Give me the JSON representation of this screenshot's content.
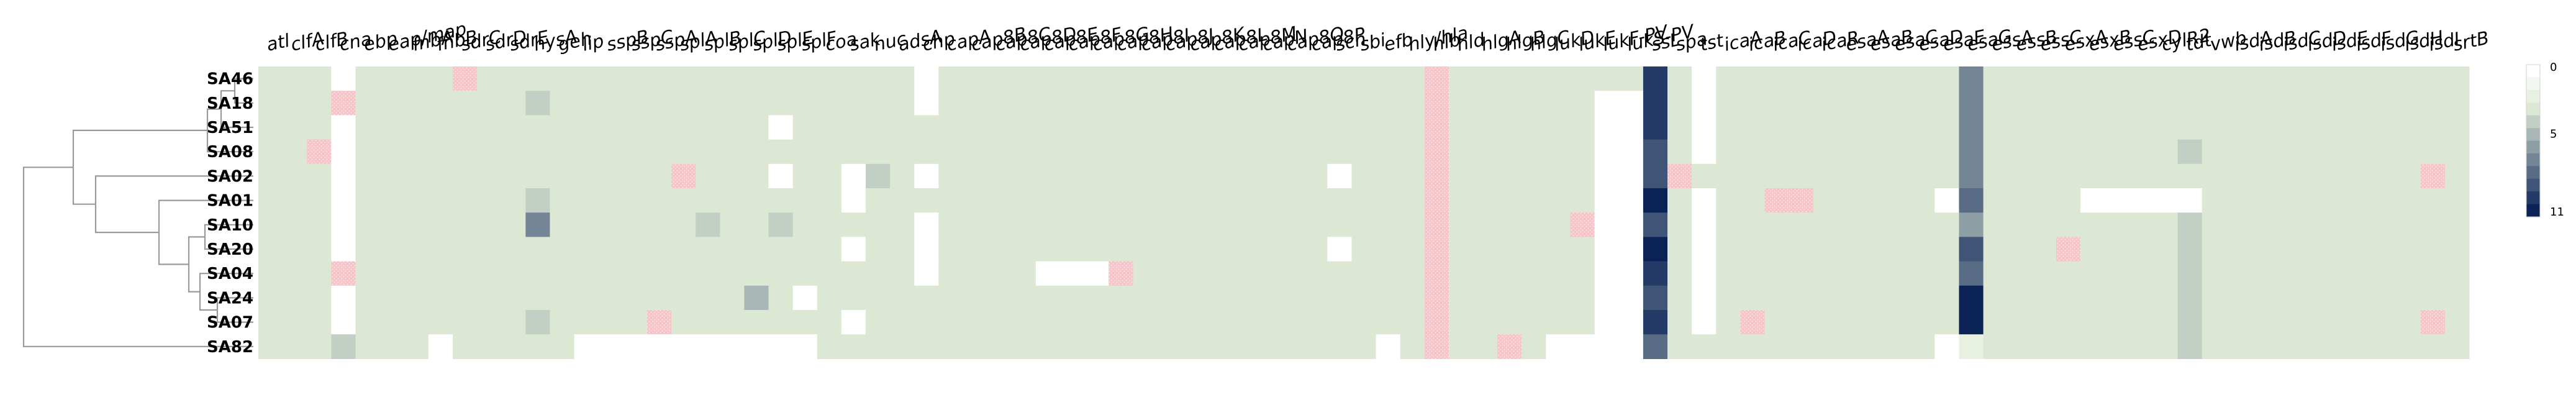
{
  "chart_data": {
    "type": "heatmap",
    "title": "",
    "xlabel": "",
    "ylabel": "",
    "genes": [
      "atl",
      "clfA",
      "clfB",
      "cna",
      "ebp",
      "eap/map",
      "fnbA",
      "fnbB",
      "sdrC",
      "sdrD",
      "sdrE",
      "hysA",
      "geh",
      "lip",
      "sspB",
      "sspC",
      "sspA",
      "splA",
      "splB",
      "splC",
      "splD",
      "splE",
      "splF",
      "coa",
      "sak",
      "nuc",
      "adsA",
      "chp",
      "capA",
      "cap8B",
      "cap8C",
      "cap8D",
      "cap8E",
      "cap8F",
      "cap8G",
      "cap8H",
      "cap8I",
      "cap8J",
      "cap8K",
      "cap8L",
      "cap8M",
      "capN",
      "cap8O",
      "cap8P",
      "scn",
      "sbi",
      "efb",
      "hly/hla",
      "hlb",
      "hld",
      "hlgA",
      "hlgB",
      "hlgC",
      "lukD",
      "lukE",
      "lukF-PV",
      "lukS-PV",
      "ssL",
      "spa",
      "tst",
      "icaA",
      "icaB",
      "icaC",
      "icaD",
      "icaR",
      "esaA",
      "esaB",
      "esaC",
      "esaD",
      "esaE",
      "esaG",
      "essA",
      "essB",
      "essC",
      "esxA",
      "esxB",
      "essC",
      "esxD",
      "cylR2",
      "tdt",
      "vwb",
      "isdA",
      "isdB",
      "isdC",
      "isdD",
      "isdE",
      "isdF",
      "isdG",
      "isdH",
      "isdI",
      "srtB"
    ],
    "samples": [
      "SA46",
      "SA18",
      "SA51",
      "SA08",
      "SA02",
      "SA01",
      "SA10",
      "SA20",
      "SA04",
      "SA24",
      "SA07",
      "SA82"
    ],
    "default_value": 3,
    "absent_value": 0,
    "special_marker": "pink-dots",
    "white_cells": [
      [
        0,
        3
      ],
      [
        0,
        27
      ],
      [
        0,
        59
      ],
      [
        1,
        3
      ],
      [
        1,
        27
      ],
      [
        1,
        59
      ],
      [
        2,
        3
      ],
      [
        2,
        21
      ],
      [
        2,
        59
      ],
      [
        3,
        3
      ],
      [
        3,
        59
      ],
      [
        4,
        3
      ],
      [
        4,
        21
      ],
      [
        4,
        24
      ],
      [
        4,
        27
      ],
      [
        4,
        44
      ],
      [
        5,
        3
      ],
      [
        5,
        24
      ],
      [
        5,
        59
      ],
      [
        5,
        69
      ],
      [
        5,
        70
      ],
      [
        5,
        75
      ],
      [
        5,
        76
      ],
      [
        5,
        77
      ],
      [
        5,
        78
      ],
      [
        5,
        79
      ],
      [
        6,
        3
      ],
      [
        6,
        27
      ],
      [
        6,
        59
      ],
      [
        7,
        3
      ],
      [
        7,
        24
      ],
      [
        7,
        27
      ],
      [
        7,
        44
      ],
      [
        7,
        59
      ],
      [
        8,
        27
      ],
      [
        8,
        32
      ],
      [
        8,
        33
      ],
      [
        8,
        34
      ],
      [
        8,
        59
      ],
      [
        9,
        3
      ],
      [
        9,
        22
      ],
      [
        9,
        59
      ],
      [
        10,
        3
      ],
      [
        10,
        24
      ],
      [
        10,
        59
      ],
      [
        11,
        7
      ],
      [
        11,
        13
      ],
      [
        11,
        14
      ],
      [
        11,
        15
      ],
      [
        11,
        16
      ],
      [
        11,
        17
      ],
      [
        11,
        18
      ],
      [
        11,
        19
      ],
      [
        11,
        20
      ],
      [
        11,
        21
      ],
      [
        11,
        22
      ],
      [
        11,
        46
      ],
      [
        11,
        53
      ],
      [
        11,
        54
      ],
      [
        11,
        55
      ],
      [
        11,
        56
      ],
      [
        11,
        69
      ],
      [
        11,
        70
      ]
    ],
    "white_rects": [
      [
        1,
        10,
        55,
        56
      ]
    ],
    "pink_cells": [
      [
        0,
        8
      ],
      [
        1,
        3
      ],
      [
        3,
        2
      ],
      [
        4,
        17
      ],
      [
        4,
        58
      ],
      [
        4,
        89
      ],
      [
        5,
        62
      ],
      [
        5,
        63
      ],
      [
        6,
        54
      ],
      [
        7,
        74
      ],
      [
        8,
        3
      ],
      [
        8,
        35
      ],
      [
        10,
        16
      ],
      [
        10,
        61
      ],
      [
        10,
        89
      ],
      [
        11,
        51
      ]
    ],
    "pink_columns": [
      48
    ],
    "valued_cells": [
      [
        1,
        11,
        4
      ],
      [
        2,
        79,
        3
      ],
      [
        3,
        79,
        4
      ],
      [
        4,
        25,
        4
      ],
      [
        5,
        25,
        3
      ],
      [
        5,
        11,
        4
      ],
      [
        6,
        11,
        7
      ],
      [
        6,
        18,
        4
      ],
      [
        6,
        21,
        4
      ],
      [
        6,
        79,
        4
      ],
      [
        7,
        79,
        4
      ],
      [
        8,
        79,
        4
      ],
      [
        9,
        20,
        5
      ],
      [
        9,
        79,
        4
      ],
      [
        10,
        11,
        4
      ],
      [
        10,
        79,
        4
      ],
      [
        11,
        3,
        4
      ],
      [
        11,
        79,
        4
      ]
    ],
    "column_values": {
      "57": [
        10,
        10,
        10,
        9,
        9,
        11,
        9,
        11,
        10,
        9,
        10,
        8
      ],
      "70": [
        7,
        7,
        7,
        7,
        7,
        8,
        6,
        9,
        8,
        11,
        11,
        2
      ]
    },
    "colorbar_ticks": [
      "0",
      "5",
      "11"
    ],
    "colorbar_range": [
      0,
      11
    ],
    "colors": {
      "background": "#ffffff",
      "default_fill": "#e3eedc",
      "absent": "#ffffff",
      "pink": "#f6c4c8",
      "pink_dot": "#ffffff",
      "low": "#ffffff",
      "mid": "#dce8d4",
      "high": "#0b2257",
      "dendrogram": "#9a9a9a"
    }
  }
}
